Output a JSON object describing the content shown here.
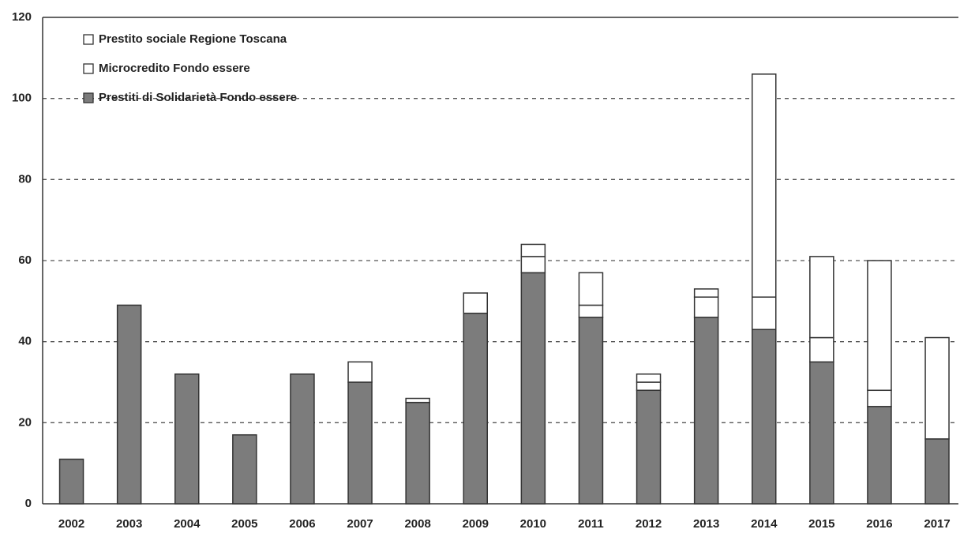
{
  "chart_data": {
    "type": "stacked_bar",
    "categories": [
      "2002",
      "2003",
      "2004",
      "2005",
      "2006",
      "2007",
      "2008",
      "2009",
      "2010",
      "2011",
      "2012",
      "2013",
      "2014",
      "2015",
      "2016",
      "2017"
    ],
    "series": [
      {
        "name": "Prestiti di Solidarietà Fondo essere",
        "color": "#7c7c7c",
        "values": [
          11,
          49,
          32,
          17,
          32,
          30,
          25,
          47,
          57,
          46,
          28,
          46,
          43,
          35,
          24,
          16
        ]
      },
      {
        "name": "Microcredito Fondo essere",
        "color": "#ffffff",
        "values": [
          0,
          0,
          0,
          0,
          0,
          5,
          1,
          5,
          4,
          3,
          2,
          5,
          8,
          6,
          4,
          0
        ]
      },
      {
        "name": "Prestito sociale Regione Toscana",
        "color": "#ffffff",
        "values": [
          0,
          0,
          0,
          0,
          0,
          0,
          0,
          0,
          3,
          8,
          2,
          2,
          55,
          20,
          32,
          25
        ]
      }
    ],
    "ylim": [
      0,
      120
    ],
    "yticks": [
      0,
      20,
      40,
      60,
      80,
      100,
      120
    ],
    "grid": true,
    "legend": "top-left"
  }
}
